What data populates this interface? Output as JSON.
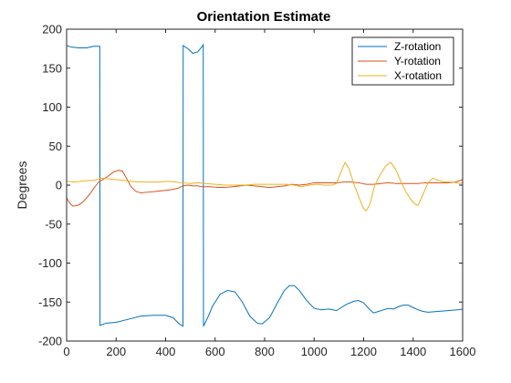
{
  "chart_data": {
    "type": "line",
    "title": "Orientation Estimate",
    "xlabel": "",
    "ylabel": "Degrees",
    "xlim": [
      0,
      1600
    ],
    "ylim": [
      -200,
      200
    ],
    "xticks": [
      0,
      200,
      400,
      600,
      800,
      1000,
      1200,
      1400,
      1600
    ],
    "yticks": [
      -200,
      -150,
      -100,
      -50,
      0,
      50,
      100,
      150,
      200
    ],
    "grid": false,
    "legend_position": "top-right",
    "series": [
      {
        "name": "Z-rotation",
        "color": "#0072BD",
        "points": [
          [
            0,
            179
          ],
          [
            20,
            177
          ],
          [
            50,
            176
          ],
          [
            80,
            176
          ],
          [
            110,
            178
          ],
          [
            134,
            178
          ],
          [
            135,
            -180
          ],
          [
            160,
            -177
          ],
          [
            200,
            -176
          ],
          [
            250,
            -172
          ],
          [
            300,
            -168
          ],
          [
            350,
            -167
          ],
          [
            400,
            -167
          ],
          [
            430,
            -170
          ],
          [
            455,
            -178
          ],
          [
            470,
            -181
          ],
          [
            471,
            179
          ],
          [
            490,
            175
          ],
          [
            510,
            169
          ],
          [
            530,
            171
          ],
          [
            548,
            178
          ],
          [
            552,
            180
          ],
          [
            553,
            -181
          ],
          [
            570,
            -170
          ],
          [
            590,
            -155
          ],
          [
            620,
            -140
          ],
          [
            650,
            -135
          ],
          [
            680,
            -137
          ],
          [
            710,
            -150
          ],
          [
            740,
            -168
          ],
          [
            770,
            -177
          ],
          [
            790,
            -178
          ],
          [
            820,
            -170
          ],
          [
            850,
            -152
          ],
          [
            880,
            -135
          ],
          [
            900,
            -129
          ],
          [
            920,
            -129
          ],
          [
            940,
            -135
          ],
          [
            970,
            -148
          ],
          [
            1000,
            -158
          ],
          [
            1030,
            -160
          ],
          [
            1060,
            -159
          ],
          [
            1090,
            -161
          ],
          [
            1110,
            -157
          ],
          [
            1130,
            -153
          ],
          [
            1160,
            -149
          ],
          [
            1180,
            -148
          ],
          [
            1200,
            -151
          ],
          [
            1220,
            -158
          ],
          [
            1240,
            -164
          ],
          [
            1260,
            -162
          ],
          [
            1280,
            -160
          ],
          [
            1300,
            -158
          ],
          [
            1320,
            -159
          ],
          [
            1340,
            -156
          ],
          [
            1360,
            -154
          ],
          [
            1380,
            -154
          ],
          [
            1400,
            -157
          ],
          [
            1420,
            -160
          ],
          [
            1440,
            -162
          ],
          [
            1460,
            -163
          ],
          [
            1500,
            -162
          ],
          [
            1540,
            -161
          ],
          [
            1580,
            -160
          ],
          [
            1600,
            -159
          ]
        ]
      },
      {
        "name": "Y-rotation",
        "color": "#D95319",
        "points": [
          [
            0,
            -16
          ],
          [
            10,
            -22
          ],
          [
            25,
            -27
          ],
          [
            45,
            -26
          ],
          [
            65,
            -22
          ],
          [
            90,
            -13
          ],
          [
            110,
            -4
          ],
          [
            130,
            4
          ],
          [
            150,
            8
          ],
          [
            170,
            12
          ],
          [
            190,
            17
          ],
          [
            210,
            19
          ],
          [
            225,
            18
          ],
          [
            240,
            10
          ],
          [
            260,
            -2
          ],
          [
            280,
            -8
          ],
          [
            300,
            -10
          ],
          [
            330,
            -9
          ],
          [
            360,
            -8
          ],
          [
            390,
            -7
          ],
          [
            420,
            -6
          ],
          [
            450,
            -4
          ],
          [
            470,
            -1
          ],
          [
            490,
            0
          ],
          [
            510,
            -1
          ],
          [
            530,
            -1
          ],
          [
            550,
            -2
          ],
          [
            580,
            -2
          ],
          [
            610,
            -3
          ],
          [
            640,
            -3
          ],
          [
            670,
            -2
          ],
          [
            700,
            -1
          ],
          [
            730,
            0
          ],
          [
            760,
            -1
          ],
          [
            790,
            -2
          ],
          [
            820,
            -3
          ],
          [
            850,
            -2
          ],
          [
            880,
            -1
          ],
          [
            910,
            1
          ],
          [
            940,
            0
          ],
          [
            970,
            1
          ],
          [
            1000,
            3
          ],
          [
            1030,
            3
          ],
          [
            1060,
            3
          ],
          [
            1090,
            3
          ],
          [
            1120,
            4
          ],
          [
            1150,
            4
          ],
          [
            1180,
            3
          ],
          [
            1210,
            1
          ],
          [
            1240,
            1
          ],
          [
            1270,
            2
          ],
          [
            1300,
            3
          ],
          [
            1330,
            2
          ],
          [
            1360,
            2
          ],
          [
            1390,
            2
          ],
          [
            1420,
            2
          ],
          [
            1450,
            3
          ],
          [
            1480,
            3
          ],
          [
            1510,
            3
          ],
          [
            1540,
            3
          ],
          [
            1570,
            4
          ],
          [
            1590,
            6
          ],
          [
            1600,
            7
          ]
        ]
      },
      {
        "name": "X-rotation",
        "color": "#EDB120",
        "points": [
          [
            0,
            5
          ],
          [
            30,
            4
          ],
          [
            60,
            5
          ],
          [
            90,
            6
          ],
          [
            110,
            6
          ],
          [
            140,
            9
          ],
          [
            170,
            8
          ],
          [
            200,
            7
          ],
          [
            230,
            6
          ],
          [
            260,
            5
          ],
          [
            290,
            4
          ],
          [
            320,
            4
          ],
          [
            350,
            4
          ],
          [
            380,
            4
          ],
          [
            410,
            5
          ],
          [
            440,
            4
          ],
          [
            470,
            3
          ],
          [
            500,
            2
          ],
          [
            530,
            3
          ],
          [
            560,
            2
          ],
          [
            600,
            1
          ],
          [
            640,
            0
          ],
          [
            680,
            0
          ],
          [
            720,
            0
          ],
          [
            760,
            1
          ],
          [
            800,
            1
          ],
          [
            840,
            1
          ],
          [
            880,
            1
          ],
          [
            920,
            0
          ],
          [
            950,
            -2
          ],
          [
            980,
            0
          ],
          [
            1010,
            1
          ],
          [
            1040,
            0
          ],
          [
            1070,
            0
          ],
          [
            1090,
            2
          ],
          [
            1110,
            18
          ],
          [
            1125,
            29
          ],
          [
            1140,
            22
          ],
          [
            1160,
            2
          ],
          [
            1180,
            -15
          ],
          [
            1200,
            -30
          ],
          [
            1210,
            -33
          ],
          [
            1225,
            -25
          ],
          [
            1245,
            0
          ],
          [
            1270,
            15
          ],
          [
            1290,
            25
          ],
          [
            1310,
            29
          ],
          [
            1330,
            20
          ],
          [
            1350,
            5
          ],
          [
            1370,
            -8
          ],
          [
            1390,
            -18
          ],
          [
            1410,
            -25
          ],
          [
            1420,
            -26
          ],
          [
            1440,
            -12
          ],
          [
            1460,
            3
          ],
          [
            1480,
            9
          ],
          [
            1500,
            6
          ],
          [
            1530,
            4
          ],
          [
            1560,
            4
          ],
          [
            1590,
            2
          ],
          [
            1600,
            3
          ]
        ]
      }
    ]
  }
}
